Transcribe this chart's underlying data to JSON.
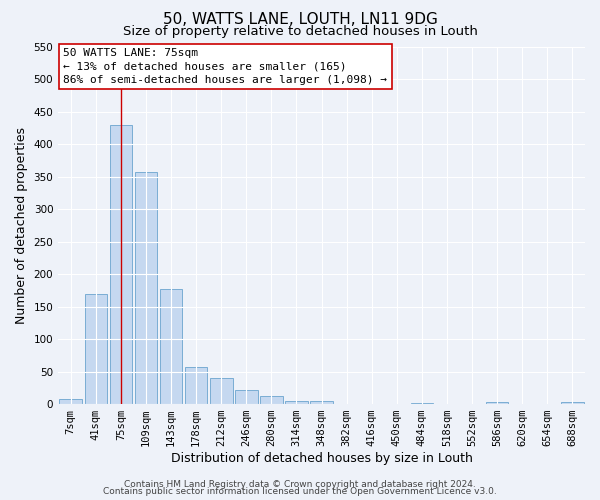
{
  "title": "50, WATTS LANE, LOUTH, LN11 9DG",
  "subtitle": "Size of property relative to detached houses in Louth",
  "xlabel": "Distribution of detached houses by size in Louth",
  "ylabel": "Number of detached properties",
  "bar_labels": [
    "7sqm",
    "41sqm",
    "75sqm",
    "109sqm",
    "143sqm",
    "178sqm",
    "212sqm",
    "246sqm",
    "280sqm",
    "314sqm",
    "348sqm",
    "382sqm",
    "416sqm",
    "450sqm",
    "484sqm",
    "518sqm",
    "552sqm",
    "586sqm",
    "620sqm",
    "654sqm",
    "688sqm"
  ],
  "bar_values": [
    8,
    170,
    430,
    357,
    177,
    57,
    40,
    21,
    12,
    5,
    4,
    0,
    0,
    0,
    2,
    0,
    0,
    3,
    0,
    0,
    3
  ],
  "bar_color": "#c5d8f0",
  "bar_edge_color": "#7aadd4",
  "ylim": [
    0,
    550
  ],
  "yticks": [
    0,
    50,
    100,
    150,
    200,
    250,
    300,
    350,
    400,
    450,
    500,
    550
  ],
  "vline_x_idx": 2,
  "vline_color": "#cc0000",
  "annotation_line1": "50 WATTS LANE: 75sqm",
  "annotation_line2": "← 13% of detached houses are smaller (165)",
  "annotation_line3": "86% of semi-detached houses are larger (1,098) →",
  "footer_line1": "Contains HM Land Registry data © Crown copyright and database right 2024.",
  "footer_line2": "Contains public sector information licensed under the Open Government Licence v3.0.",
  "bg_color": "#eef2f9",
  "grid_color": "#ffffff",
  "title_fontsize": 11,
  "subtitle_fontsize": 9.5,
  "axis_label_fontsize": 9,
  "tick_fontsize": 7.5,
  "annotation_fontsize": 8,
  "footer_fontsize": 6.5
}
